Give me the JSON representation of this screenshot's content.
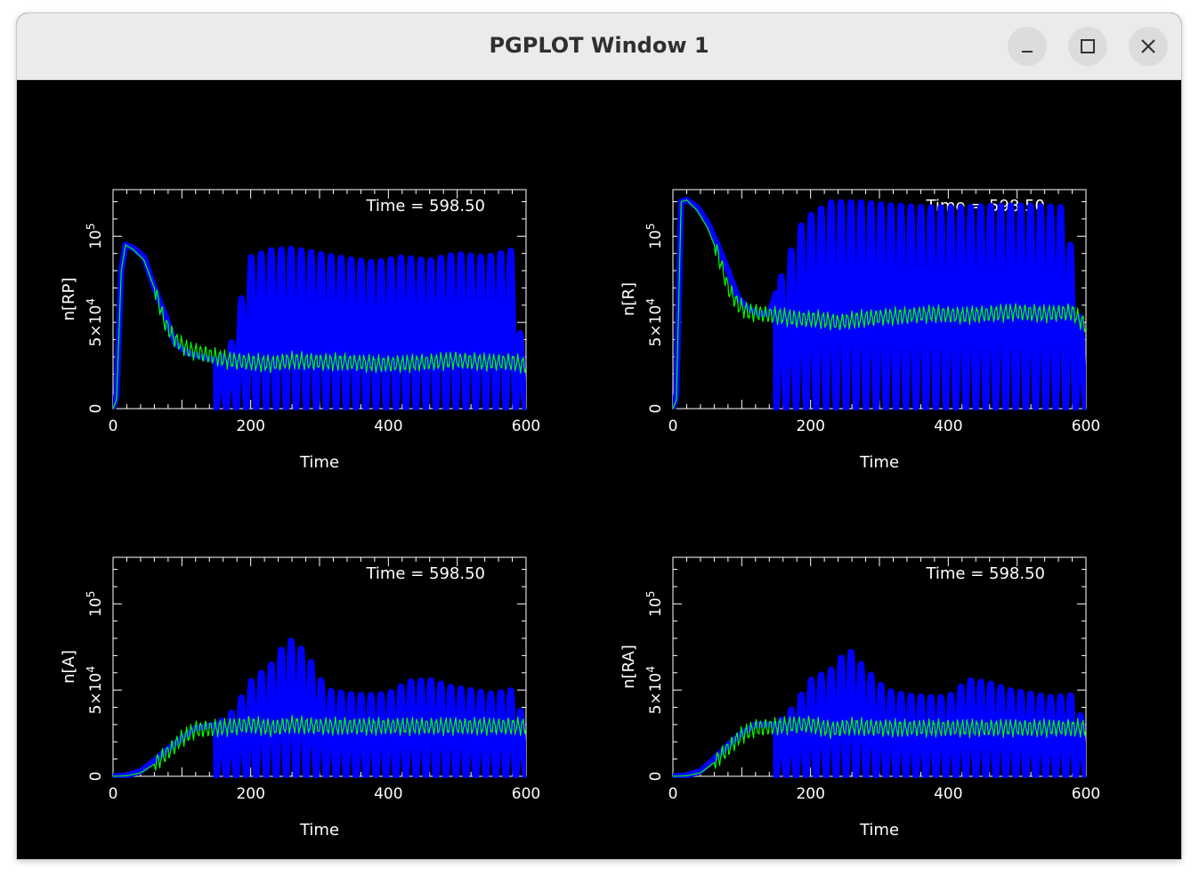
{
  "window": {
    "title": "PGPLOT Window 1",
    "controls": {
      "minimize": "minimize-icon",
      "maximize": "maximize-icon",
      "close": "close-icon"
    }
  },
  "chart_data": [
    {
      "type": "line",
      "time_label": "Time = 598.50",
      "xlabel": "Time",
      "ylabel": "n[RP]",
      "xlim": [
        0,
        600
      ],
      "ylim": [
        0,
        127000
      ],
      "xticks": [
        "0",
        "200",
        "400",
        "600"
      ],
      "yticks": [
        "0",
        "5×10^4",
        "10^5"
      ],
      "series": [
        {
          "color": "#0000ff",
          "values": [
            [
              0,
              0
            ],
            [
              5,
              8000
            ],
            [
              12,
              80000
            ],
            [
              18,
              95000
            ],
            [
              30,
              93000
            ],
            [
              45,
              88000
            ],
            [
              60,
              70000
            ],
            [
              75,
              55000
            ],
            [
              90,
              38000
            ],
            [
              110,
              32000
            ],
            [
              130,
              30000
            ],
            [
              150,
              28000
            ],
            [
              170,
              35000
            ],
            [
              200,
              88000
            ],
            [
              230,
              92000
            ],
            [
              260,
              93000
            ],
            [
              300,
              90000
            ],
            [
              340,
              87000
            ],
            [
              380,
              85000
            ],
            [
              420,
              88000
            ],
            [
              460,
              86000
            ],
            [
              500,
              90000
            ],
            [
              540,
              88000
            ],
            [
              580,
              92000
            ],
            [
              600,
              10000
            ]
          ],
          "oscillation": {
            "start": 150,
            "period": 14.5,
            "min": 0
          }
        },
        {
          "color": "#00ff00",
          "values": [
            [
              0,
              0
            ],
            [
              5,
              5000
            ],
            [
              12,
              80000
            ],
            [
              18,
              95000
            ],
            [
              30,
              92000
            ],
            [
              45,
              86000
            ],
            [
              60,
              70000
            ],
            [
              75,
              50000
            ],
            [
              90,
              40000
            ],
            [
              110,
              34000
            ],
            [
              130,
              32000
            ],
            [
              150,
              30000
            ],
            [
              170,
              28000
            ],
            [
              200,
              27000
            ],
            [
              230,
              26000
            ],
            [
              260,
              28000
            ],
            [
              300,
              27000
            ],
            [
              340,
              27000
            ],
            [
              380,
              26000
            ],
            [
              420,
              26000
            ],
            [
              460,
              27000
            ],
            [
              500,
              28000
            ],
            [
              540,
              27000
            ],
            [
              580,
              27000
            ],
            [
              600,
              25000
            ]
          ]
        }
      ]
    },
    {
      "type": "line",
      "time_label": "Time = 598.50",
      "xlabel": "Time",
      "ylabel": "n[R]",
      "xlim": [
        0,
        600
      ],
      "ylim": [
        0,
        127000
      ],
      "xticks": [
        "0",
        "200",
        "400",
        "600"
      ],
      "yticks": [
        "0",
        "5×10^4",
        "10^5"
      ],
      "series": [
        {
          "color": "#0000ff",
          "values": [
            [
              0,
              0
            ],
            [
              5,
              8000
            ],
            [
              12,
              120000
            ],
            [
              20,
              121000
            ],
            [
              35,
              117000
            ],
            [
              50,
              108000
            ],
            [
              65,
              95000
            ],
            [
              80,
              80000
            ],
            [
              95,
              64000
            ],
            [
              110,
              58000
            ],
            [
              125,
              55000
            ],
            [
              140,
              55000
            ],
            [
              160,
              80000
            ],
            [
              190,
              110000
            ],
            [
              230,
              120000
            ],
            [
              270,
              120000
            ],
            [
              320,
              118000
            ],
            [
              370,
              117000
            ],
            [
              420,
              117000
            ],
            [
              470,
              118000
            ],
            [
              520,
              118000
            ],
            [
              570,
              117000
            ],
            [
              600,
              30000
            ]
          ],
          "oscillation": {
            "start": 150,
            "period": 14.5,
            "min": 0
          }
        },
        {
          "color": "#00ff00",
          "values": [
            [
              0,
              0
            ],
            [
              5,
              5000
            ],
            [
              12,
              120000
            ],
            [
              20,
              121000
            ],
            [
              35,
              115000
            ],
            [
              50,
              105000
            ],
            [
              65,
              90000
            ],
            [
              80,
              70000
            ],
            [
              95,
              60000
            ],
            [
              110,
              56000
            ],
            [
              130,
              55000
            ],
            [
              150,
              54000
            ],
            [
              180,
              52000
            ],
            [
              210,
              52000
            ],
            [
              240,
              50000
            ],
            [
              270,
              52000
            ],
            [
              300,
              53000
            ],
            [
              340,
              54000
            ],
            [
              380,
              55000
            ],
            [
              420,
              54000
            ],
            [
              460,
              55000
            ],
            [
              500,
              56000
            ],
            [
              540,
              55000
            ],
            [
              580,
              56000
            ],
            [
              600,
              48000
            ]
          ]
        }
      ]
    },
    {
      "type": "line",
      "time_label": "Time = 598.50",
      "xlabel": "Time",
      "ylabel": "n[A]",
      "xlim": [
        0,
        600
      ],
      "ylim": [
        0,
        127000
      ],
      "xticks": [
        "0",
        "200",
        "400",
        "600"
      ],
      "yticks": [
        "0",
        "5×10^4",
        "10^5"
      ],
      "series": [
        {
          "color": "#0000ff",
          "values": [
            [
              0,
              0
            ],
            [
              20,
              500
            ],
            [
              40,
              3000
            ],
            [
              60,
              9000
            ],
            [
              80,
              16000
            ],
            [
              100,
              22000
            ],
            [
              120,
              28000
            ],
            [
              150,
              30000
            ],
            [
              175,
              38000
            ],
            [
              200,
              55000
            ],
            [
              230,
              65000
            ],
            [
              255,
              80000
            ],
            [
              280,
              72000
            ],
            [
              310,
              50000
            ],
            [
              340,
              48000
            ],
            [
              370,
              47000
            ],
            [
              400,
              48000
            ],
            [
              430,
              55000
            ],
            [
              460,
              56000
            ],
            [
              490,
              52000
            ],
            [
              520,
              50000
            ],
            [
              550,
              48000
            ],
            [
              580,
              50000
            ],
            [
              600,
              30000
            ]
          ],
          "oscillation": {
            "start": 150,
            "period": 14.5,
            "min": 0
          }
        },
        {
          "color": "#00ff00",
          "values": [
            [
              0,
              0
            ],
            [
              20,
              300
            ],
            [
              40,
              2000
            ],
            [
              60,
              7000
            ],
            [
              80,
              14000
            ],
            [
              100,
              22000
            ],
            [
              120,
              27000
            ],
            [
              150,
              28000
            ],
            [
              180,
              29000
            ],
            [
              200,
              30000
            ],
            [
              230,
              28000
            ],
            [
              260,
              30000
            ],
            [
              300,
              29000
            ],
            [
              340,
              29000
            ],
            [
              380,
              29000
            ],
            [
              420,
              29000
            ],
            [
              460,
              29000
            ],
            [
              500,
              29000
            ],
            [
              540,
              29000
            ],
            [
              580,
              29000
            ],
            [
              600,
              29000
            ]
          ]
        }
      ]
    },
    {
      "type": "line",
      "time_label": "Time = 598.50",
      "xlabel": "Time",
      "ylabel": "n[RA]",
      "xlim": [
        0,
        600
      ],
      "ylim": [
        0,
        127000
      ],
      "xticks": [
        "0",
        "200",
        "400",
        "600"
      ],
      "yticks": [
        "0",
        "5×10^4",
        "10^5"
      ],
      "series": [
        {
          "color": "#0000ff",
          "values": [
            [
              0,
              0
            ],
            [
              20,
              500
            ],
            [
              40,
              3000
            ],
            [
              60,
              10000
            ],
            [
              80,
              18000
            ],
            [
              100,
              25000
            ],
            [
              120,
              30000
            ],
            [
              150,
              30000
            ],
            [
              175,
              40000
            ],
            [
              200,
              56000
            ],
            [
              230,
              62000
            ],
            [
              255,
              74000
            ],
            [
              280,
              62000
            ],
            [
              310,
              50000
            ],
            [
              340,
              47000
            ],
            [
              370,
              46000
            ],
            [
              400,
              46000
            ],
            [
              430,
              56000
            ],
            [
              460,
              54000
            ],
            [
              490,
              50000
            ],
            [
              520,
              48000
            ],
            [
              550,
              46000
            ],
            [
              580,
              47000
            ],
            [
              600,
              28000
            ]
          ],
          "oscillation": {
            "start": 150,
            "period": 14.5,
            "min": 0
          }
        },
        {
          "color": "#00ff00",
          "values": [
            [
              0,
              0
            ],
            [
              20,
              300
            ],
            [
              40,
              2000
            ],
            [
              60,
              8000
            ],
            [
              80,
              16000
            ],
            [
              100,
              24000
            ],
            [
              120,
              28000
            ],
            [
              150,
              29000
            ],
            [
              180,
              30000
            ],
            [
              200,
              30000
            ],
            [
              230,
              27000
            ],
            [
              260,
              29000
            ],
            [
              300,
              28000
            ],
            [
              340,
              28000
            ],
            [
              380,
              28000
            ],
            [
              420,
              28000
            ],
            [
              460,
              28000
            ],
            [
              500,
              28000
            ],
            [
              540,
              28000
            ],
            [
              580,
              28000
            ],
            [
              600,
              28000
            ]
          ]
        }
      ]
    }
  ]
}
